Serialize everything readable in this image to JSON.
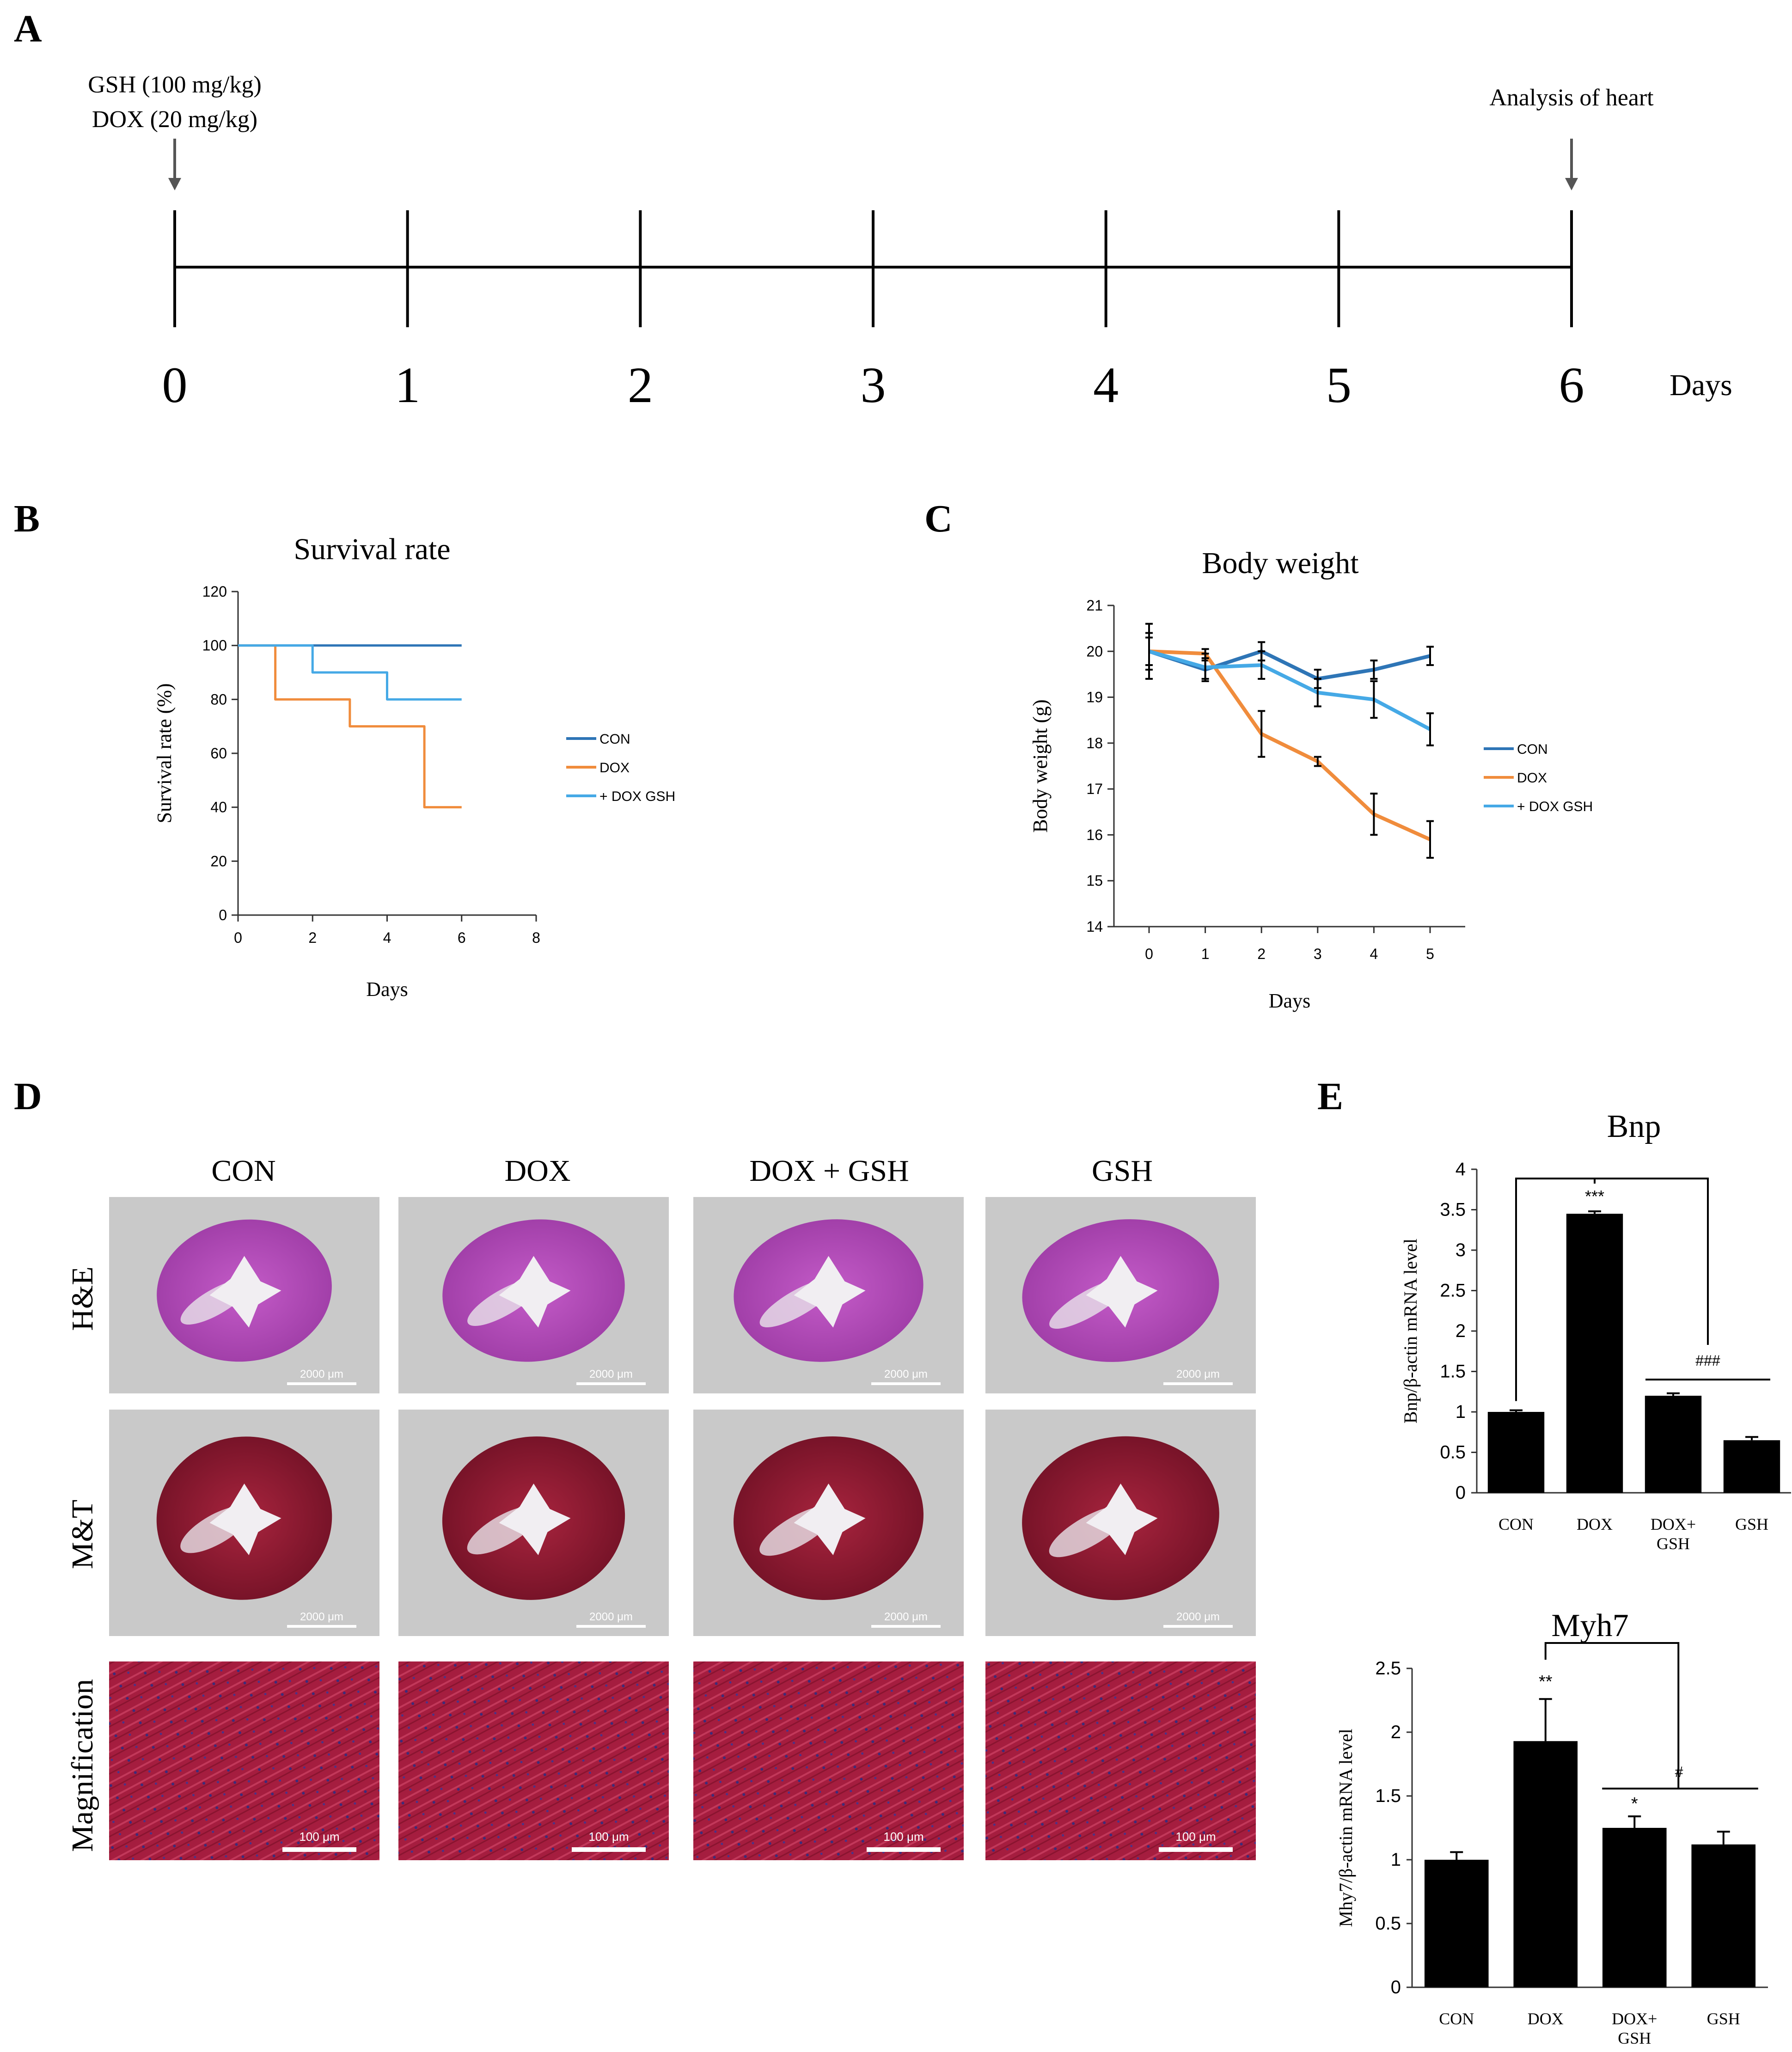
{
  "panels": {
    "a": "A",
    "b": "B",
    "c": "C",
    "d": "D",
    "e": "E"
  },
  "timeline": {
    "dose_line1": "GSH (100 mg/kg)",
    "dose_line2": "DOX (20 mg/kg)",
    "analysis_label": "Analysis of heart",
    "ticks": [
      "0",
      "1",
      "2",
      "3",
      "4",
      "5",
      "6"
    ],
    "unit_label": "Days"
  },
  "histology": {
    "columns": [
      "CON",
      "DOX",
      "DOX + GSH",
      "GSH"
    ],
    "rows": [
      "H&E",
      "M&T",
      "Magnification"
    ],
    "scale_large": "2000 μm",
    "scale_small": "100 μm"
  },
  "colors": {
    "con": "#2e75b6",
    "dox": "#f08c3c",
    "doxgsh": "#45a9e6",
    "bar": "#000000"
  },
  "chart_data": [
    {
      "id": "survival",
      "type": "line",
      "step": true,
      "title": "Survival rate",
      "xlabel": "Days",
      "ylabel": "Survival rate (%)",
      "xlim": [
        0,
        8
      ],
      "ylim": [
        0,
        120
      ],
      "xticks": [
        "0",
        "2",
        "4",
        "6",
        "8"
      ],
      "yticks": [
        "0",
        "20",
        "40",
        "60",
        "80",
        "100",
        "120"
      ],
      "legend": "right",
      "series": [
        {
          "name": "CON",
          "color": "#2e75b6",
          "x": [
            0,
            6
          ],
          "y": [
            100,
            100
          ]
        },
        {
          "name": "DOX",
          "color": "#f08c3c",
          "x": [
            0,
            1,
            3,
            5,
            6
          ],
          "y": [
            100,
            80,
            70,
            40,
            40
          ]
        },
        {
          "name": "+ DOX GSH",
          "color": "#45a9e6",
          "x": [
            0,
            2,
            4,
            6
          ],
          "y": [
            100,
            90,
            80,
            80
          ]
        }
      ]
    },
    {
      "id": "bodyweight",
      "type": "line",
      "title": "Body weight",
      "xlabel": "Days",
      "ylabel": "Body weight (g)",
      "categories": [
        "0",
        "1",
        "2",
        "3",
        "4",
        "5"
      ],
      "ylim": [
        14,
        21
      ],
      "yticks": [
        "14",
        "15",
        "16",
        "17",
        "18",
        "19",
        "20",
        "21"
      ],
      "legend": "right",
      "series": [
        {
          "name": "CON",
          "color": "#2e75b6",
          "values": [
            20.0,
            19.6,
            20.0,
            19.4,
            19.6,
            19.9
          ],
          "errors": [
            0.3,
            0.2,
            0.2,
            0.2,
            0.2,
            0.2
          ]
        },
        {
          "name": "DOX",
          "color": "#f08c3c",
          "values": [
            20.0,
            19.95,
            18.2,
            17.6,
            16.45,
            15.9
          ],
          "errors": [
            0.6,
            0.1,
            0.5,
            0.1,
            0.45,
            0.4
          ]
        },
        {
          "name": "+ DOX GSH",
          "color": "#45a9e6",
          "values": [
            20.0,
            19.65,
            19.7,
            19.1,
            18.95,
            18.3
          ],
          "errors": [
            0.4,
            0.3,
            0.3,
            0.3,
            0.4,
            0.35
          ]
        }
      ]
    },
    {
      "id": "bnp",
      "type": "bar",
      "title": "Bnp",
      "ylabel": "Bnp/β-actin mRNA level",
      "categories": [
        "CON",
        "DOX",
        "DOX+ GSH",
        "GSH"
      ],
      "values": [
        1.0,
        3.45,
        1.2,
        0.65
      ],
      "errors": [
        0.02,
        0.03,
        0.03,
        0.04
      ],
      "ylim": [
        0,
        4
      ],
      "yticks": [
        "0",
        "0.5",
        "1",
        "1.5",
        "2",
        "2.5",
        "3",
        "3.5",
        "4"
      ],
      "annotations": {
        "dox": "***",
        "compare": "###"
      }
    },
    {
      "id": "myh7",
      "type": "bar",
      "title": "Myh7",
      "ylabel": "Mhy7/β-actin mRNA level",
      "categories": [
        "CON",
        "DOX",
        "DOX+ GSH",
        "GSH"
      ],
      "values": [
        1.0,
        1.93,
        1.25,
        1.12
      ],
      "errors": [
        0.06,
        0.33,
        0.09,
        0.1
      ],
      "ylim": [
        0,
        2.5
      ],
      "yticks": [
        "0",
        "0.5",
        "1",
        "1.5",
        "2",
        "2.5"
      ],
      "annotations": {
        "dox": "**",
        "doxgsh": "*",
        "compare": "#"
      }
    }
  ]
}
